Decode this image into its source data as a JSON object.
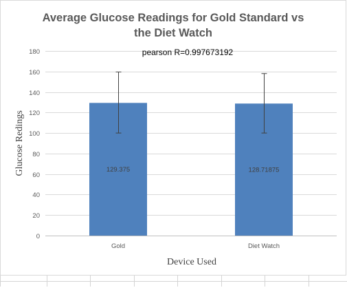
{
  "chart_data": {
    "type": "bar",
    "title": "Average Glucose Readings for Gold Standard vs the Diet Watch",
    "title_lines": [
      "Average Glucose Readings for Gold Standard vs",
      "the Diet Watch"
    ],
    "annotation": "pearson R=0.997673192",
    "xlabel": "Device Used",
    "ylabel": "Glucose Redings",
    "categories": [
      "Gold",
      "Diet Watch"
    ],
    "values": [
      129.375,
      128.71875
    ],
    "value_labels": [
      "129.375",
      "128.71875"
    ],
    "error_high": [
      159.5,
      158
    ],
    "error_low": [
      100,
      100
    ],
    "ylim": [
      0,
      180
    ],
    "yticks": [
      0,
      20,
      40,
      60,
      80,
      100,
      120,
      140,
      160,
      180
    ],
    "grid": true,
    "legend": "none",
    "bar_color": "#4f81bd",
    "grid_color": "#d9d9d9"
  }
}
